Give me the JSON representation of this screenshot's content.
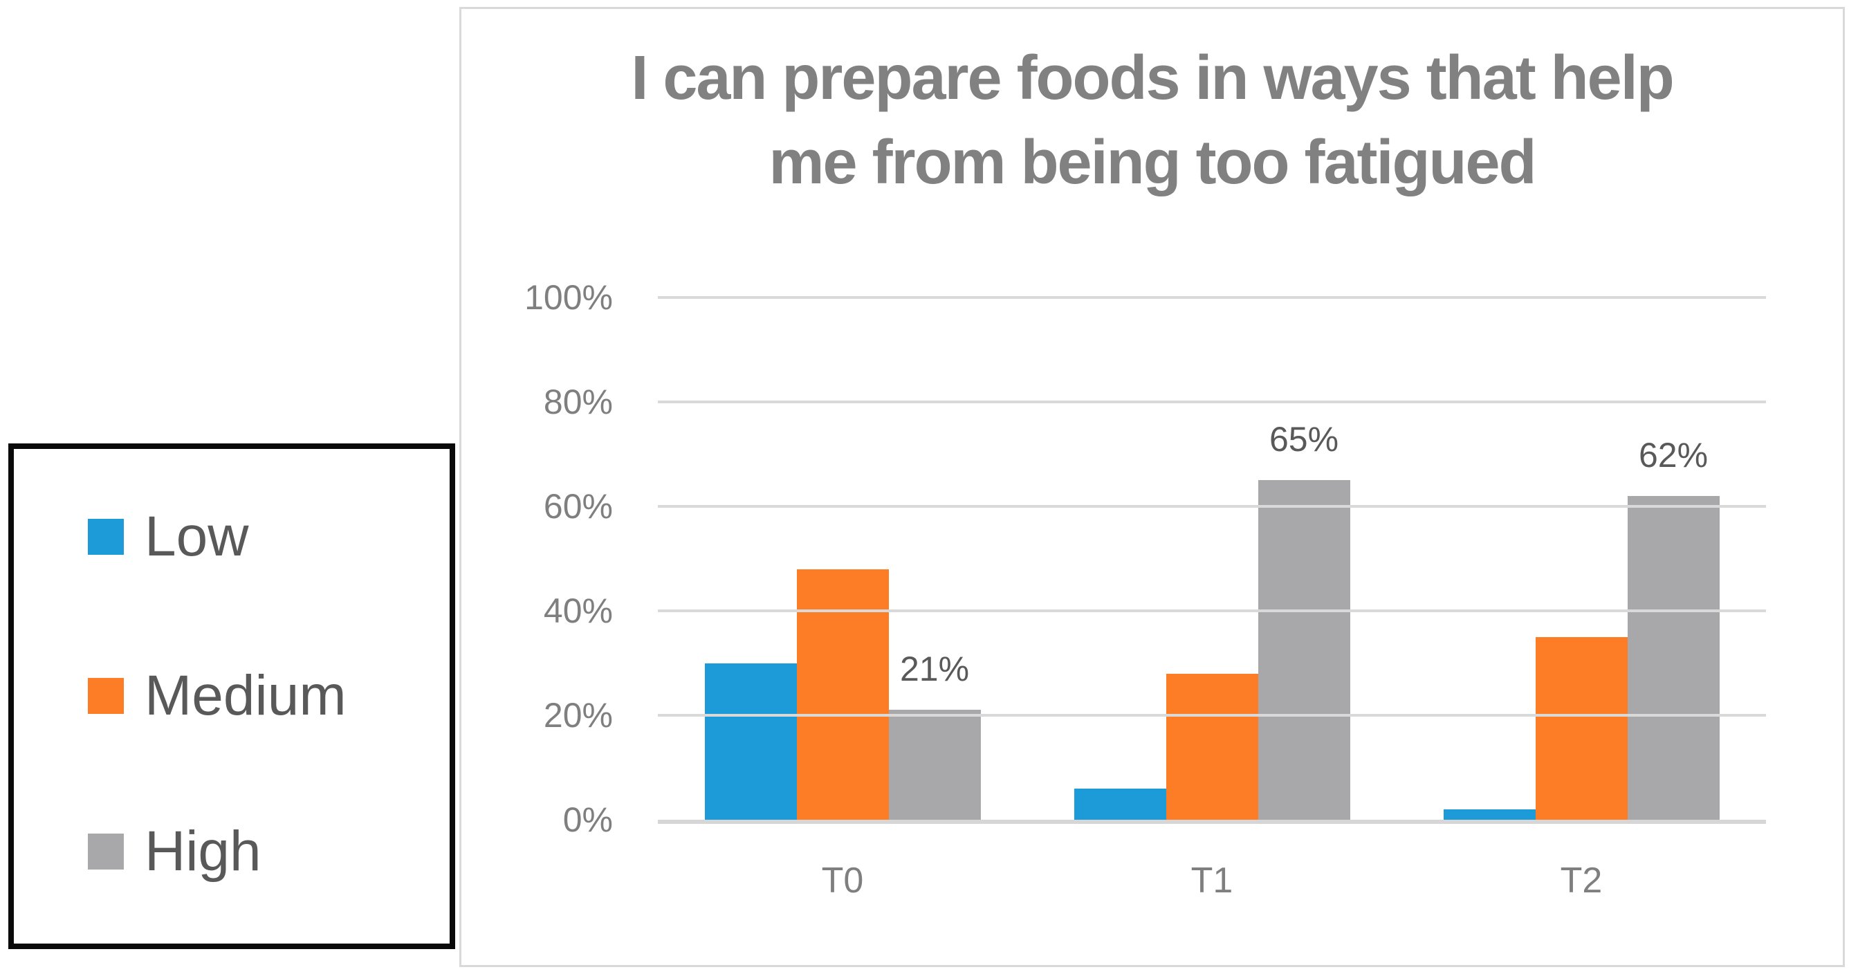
{
  "legend": {
    "items": [
      {
        "label": "Low",
        "color": "#1d9bd8"
      },
      {
        "label": "Medium",
        "color": "#fd7d26"
      },
      {
        "label": "High",
        "color": "#a8a8aa"
      }
    ]
  },
  "chart_data": {
    "type": "bar",
    "title": "I can prepare foods in ways that help me from being too fatigued",
    "title_lines": [
      "I can prepare foods in ways that help",
      "me from being too fatigued"
    ],
    "categories": [
      "T0",
      "T1",
      "T2"
    ],
    "series": [
      {
        "name": "Low",
        "color": "#1d9bd8",
        "values": [
          30,
          6,
          2
        ],
        "show_labels": false
      },
      {
        "name": "Medium",
        "color": "#fd7d26",
        "values": [
          48,
          28,
          35
        ],
        "show_labels": false
      },
      {
        "name": "High",
        "color": "#a8a8aa",
        "values": [
          21,
          65,
          62
        ],
        "show_labels": true,
        "data_labels": [
          "21%",
          "65%",
          "62%"
        ]
      }
    ],
    "y_axis": {
      "min": 0,
      "max": 100,
      "tick_step": 20,
      "ticks": [
        "0%",
        "20%",
        "40%",
        "60%",
        "80%",
        "100%"
      ],
      "grid": true
    },
    "legend_position": "left-outside",
    "colors": {
      "title_text": "#818181",
      "tick_text": "#7f7f7f",
      "data_label_text": "#595959",
      "legend_text": "#595959",
      "gridline": "#d9d9d9",
      "axis_line": "#d6d6d6",
      "panel_border": "#d9d9d9",
      "legend_border": "#0a0a0a"
    }
  }
}
